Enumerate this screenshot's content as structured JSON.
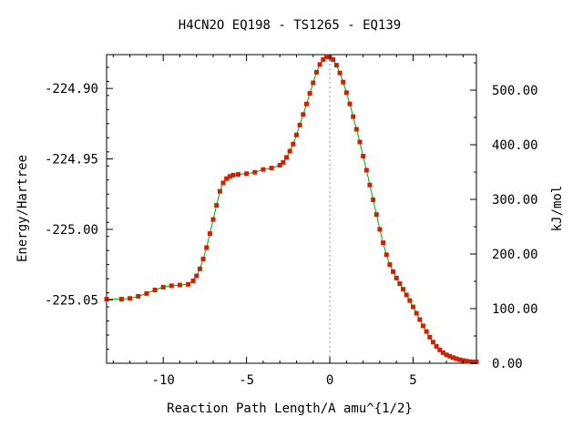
{
  "chart_data": {
    "type": "scatter",
    "title": "H4CN2O   EQ198 - TS1265 - EQ139",
    "xlabel": "Reaction Path Length/A amu^{1/2}",
    "ylabel": "Energy/Hartree",
    "y2label": "kJ/mol",
    "xlim": [
      -13.4,
      8.8
    ],
    "ylim": [
      -225.095,
      -224.876
    ],
    "y2lim": [
      0,
      565
    ],
    "x_ticks": [
      "-10",
      "-5",
      "0",
      "5"
    ],
    "y_ticks": [
      "-224.90",
      "-224.95",
      "-225.00",
      "-225.05"
    ],
    "y2_ticks": [
      "500.00",
      "400.00",
      "300.00",
      "200.00",
      "100.00",
      "0.00"
    ],
    "grid": false,
    "legend": "none",
    "ts_marker_x": 0,
    "colors": {
      "points": "#cc2200",
      "line": "#00aa00",
      "ts_line": "#999999"
    },
    "series": [
      {
        "x": [
          -13.4,
          -12.5,
          -12.0,
          -11.5,
          -11.0,
          -10.5,
          -10.0,
          -9.5,
          -9.0,
          -8.5,
          -8.2,
          -8.0,
          -7.8,
          -7.6,
          -7.4,
          -7.2,
          -7.0,
          -6.8,
          -6.6,
          -6.4,
          -6.2,
          -6.0,
          -5.8,
          -5.5,
          -5.0,
          -4.5,
          -4.0,
          -3.5,
          -3.0,
          -2.8,
          -2.6,
          -2.4,
          -2.2,
          -2.0,
          -1.8,
          -1.6,
          -1.4,
          -1.2,
          -1.0,
          -0.8,
          -0.6,
          -0.4,
          -0.2,
          0.0,
          0.2,
          0.4,
          0.6,
          0.8,
          1.0,
          1.2,
          1.4,
          1.6,
          1.8,
          2.0,
          2.2,
          2.4,
          2.6,
          2.8,
          3.0,
          3.2,
          3.4,
          3.6,
          3.8,
          4.0,
          4.2,
          4.4,
          4.6,
          4.8,
          5.0,
          5.2,
          5.4,
          5.6,
          5.8,
          6.0,
          6.2,
          6.4,
          6.6,
          6.8,
          7.0,
          7.2,
          7.4,
          7.6,
          7.8,
          8.0,
          8.2,
          8.4,
          8.6,
          8.8
        ],
        "y": [
          -225.0495,
          -225.0495,
          -225.049,
          -225.0475,
          -225.0455,
          -225.043,
          -225.041,
          -225.04,
          -225.0395,
          -225.039,
          -225.0365,
          -225.033,
          -225.028,
          -225.021,
          -225.013,
          -225.003,
          -224.993,
          -224.983,
          -224.973,
          -224.967,
          -224.964,
          -224.9625,
          -224.9615,
          -224.961,
          -224.9605,
          -224.9595,
          -224.9575,
          -224.9565,
          -224.9545,
          -224.9525,
          -224.949,
          -224.9445,
          -224.9395,
          -224.933,
          -224.926,
          -224.9185,
          -224.911,
          -224.9035,
          -224.896,
          -224.8885,
          -224.883,
          -224.8795,
          -224.8775,
          -224.8775,
          -224.8795,
          -224.8835,
          -224.889,
          -224.8955,
          -224.903,
          -224.911,
          -224.92,
          -224.929,
          -224.938,
          -224.948,
          -224.958,
          -224.9685,
          -224.979,
          -224.9895,
          -225.0,
          -225.0095,
          -225.018,
          -225.025,
          -225.03,
          -225.0345,
          -225.0385,
          -225.0425,
          -225.0465,
          -225.0505,
          -225.055,
          -225.0595,
          -225.064,
          -225.0685,
          -225.0725,
          -225.0765,
          -225.08,
          -225.083,
          -225.0855,
          -225.0875,
          -225.089,
          -225.09,
          -225.091,
          -225.0918,
          -225.0925,
          -225.093,
          -225.0935,
          -225.0938,
          -225.094,
          -225.094
        ]
      }
    ]
  }
}
